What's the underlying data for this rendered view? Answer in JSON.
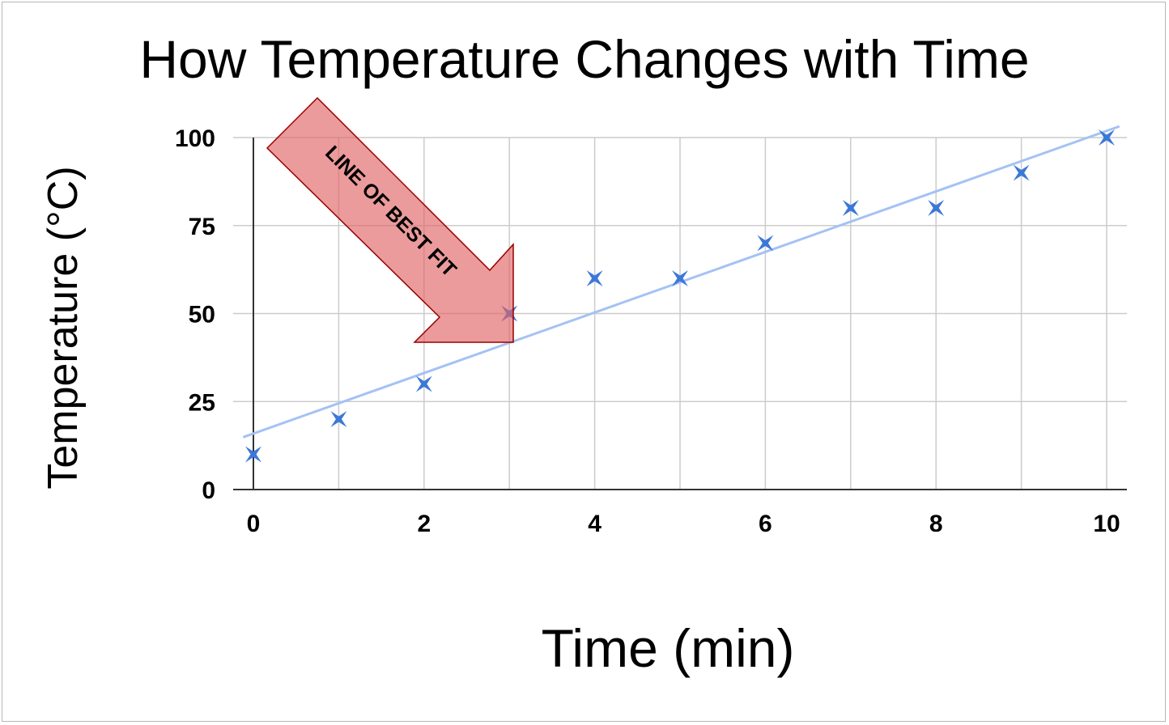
{
  "chart_data": {
    "type": "scatter",
    "title": "How Temperature Changes with Time",
    "xlabel": "Time (min)",
    "ylabel": "Temperature (°C)",
    "xlim": [
      0,
      10
    ],
    "ylim": [
      0,
      100
    ],
    "x_ticks": [
      0,
      2,
      4,
      6,
      8,
      10
    ],
    "y_ticks": [
      0,
      25,
      50,
      75,
      100
    ],
    "grid": true,
    "series": [
      {
        "x": [
          0,
          1,
          2,
          3,
          4,
          5,
          6,
          7,
          8,
          9,
          10
        ],
        "y": [
          10,
          20,
          30,
          50,
          60,
          60,
          70,
          80,
          80,
          90,
          100
        ],
        "color": "#3c78d8",
        "marker": "star-cross"
      }
    ],
    "trendline": {
      "type": "linear",
      "slope": 8.6,
      "intercept": 15.9,
      "color": "#a4c2f4"
    },
    "annotation": {
      "text": "LINE OF BEST FIT",
      "shape": "arrow",
      "fill": "#e06666",
      "fill_opacity": 0.65,
      "stroke": "#990000"
    }
  }
}
